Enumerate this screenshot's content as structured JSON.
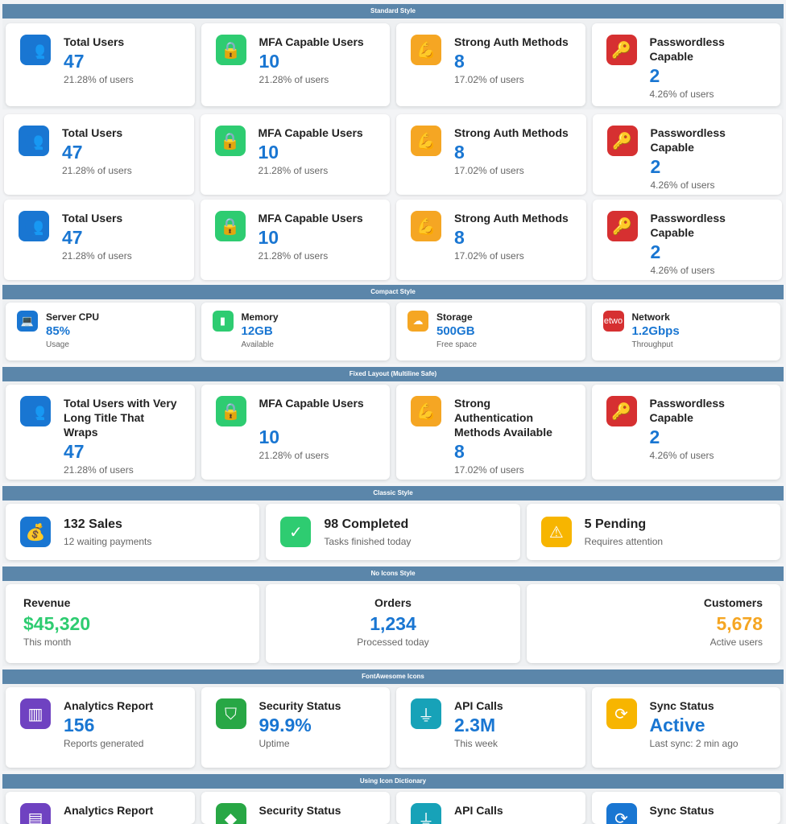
{
  "standard": {
    "title": "Standard Style",
    "rows": [
      [
        {
          "icon": "users-icon",
          "glyph": "👥",
          "title": "Total Users",
          "value": "47",
          "sub": "21.28% of users"
        },
        {
          "icon": "lock-icon",
          "glyph": "🔒",
          "title": "MFA Capable Users",
          "value": "10",
          "sub": "21.28% of users"
        },
        {
          "icon": "strong-arm-icon",
          "glyph": "💪",
          "title": "Strong Auth Methods",
          "value": "8",
          "sub": "17.02% of users"
        },
        {
          "icon": "key-icon",
          "glyph": "🔑",
          "title": "Passwordless Capable",
          "value": "2",
          "sub": "4.26% of users"
        }
      ],
      [
        {
          "icon": "users-icon",
          "glyph": "👥",
          "title": "Total Users",
          "value": "47",
          "sub": "21.28% of users"
        },
        {
          "icon": "lock-icon",
          "glyph": "🔒",
          "title": "MFA Capable Users",
          "value": "10",
          "sub": "21.28% of users"
        },
        {
          "icon": "strong-arm-icon",
          "glyph": "💪",
          "title": "Strong Auth Methods",
          "value": "8",
          "sub": "17.02% of users"
        },
        {
          "icon": "key-icon",
          "glyph": "🔑",
          "title": "Passwordless Capable",
          "value": "2",
          "sub": "4.26% of users"
        }
      ],
      [
        {
          "icon": "users-icon",
          "glyph": "👥",
          "title": "Total Users",
          "value": "47",
          "sub": "21.28% of users"
        },
        {
          "icon": "lock-icon",
          "glyph": "🔒",
          "title": "MFA Capable Users",
          "value": "10",
          "sub": "21.28% of users"
        },
        {
          "icon": "strong-arm-icon",
          "glyph": "💪",
          "title": "Strong Auth Methods",
          "value": "8",
          "sub": "17.02% of users"
        },
        {
          "icon": "key-icon",
          "glyph": "🔑",
          "title": "Passwordless Capable",
          "value": "2",
          "sub": "4.26% of users"
        }
      ]
    ]
  },
  "compact": {
    "title": "Compact Style",
    "cards": [
      {
        "icon": "computer-icon",
        "glyph": "💻",
        "title": "Server CPU",
        "value": "85%",
        "sub": "Usage"
      },
      {
        "icon": "memory-icon",
        "glyph": "▮",
        "title": "Memory",
        "value": "12GB",
        "sub": "Available"
      },
      {
        "icon": "cloud-icon",
        "glyph": "☁",
        "title": "Storage",
        "value": "500GB",
        "sub": "Free space"
      },
      {
        "icon": "network-icon",
        "glyph": "etwo",
        "title": "Network",
        "value": "1.2Gbps",
        "sub": "Throughput"
      }
    ]
  },
  "fixed": {
    "title": "Fixed Layout (Multiline Safe)",
    "cards": [
      {
        "icon": "users-icon",
        "glyph": "👥",
        "title": "Total Users with Very Long Title That Wraps",
        "value": "47",
        "sub": "21.28% of users"
      },
      {
        "icon": "lock-icon",
        "glyph": "🔒",
        "title": "MFA Capable Users",
        "value": "10",
        "sub": "21.28% of users"
      },
      {
        "icon": "strong-arm-icon",
        "glyph": "💪",
        "title": "Strong Authentication Methods Available",
        "value": "8",
        "sub": "17.02% of users"
      },
      {
        "icon": "key-icon",
        "glyph": "🔑",
        "title": "Passwordless Capable",
        "value": "2",
        "sub": "4.26% of users"
      }
    ]
  },
  "classic": {
    "title": "Classic Style",
    "cards": [
      {
        "icon": "money-bag-icon",
        "glyph": "💰",
        "title": "132 Sales",
        "sub": "12 waiting payments"
      },
      {
        "icon": "check-icon",
        "glyph": "✓",
        "title": "98 Completed",
        "sub": "Tasks finished today"
      },
      {
        "icon": "warning-icon",
        "glyph": "⚠",
        "title": "5 Pending",
        "sub": "Requires attention"
      }
    ]
  },
  "noicons": {
    "title": "No Icons Style",
    "cards": [
      {
        "title": "Revenue",
        "value": "$45,320",
        "sub": "This month",
        "align": "left",
        "color": "#2ecc71"
      },
      {
        "title": "Orders",
        "value": "1,234",
        "sub": "Processed today",
        "align": "center",
        "color": "#1976d2"
      },
      {
        "title": "Customers",
        "value": "5,678",
        "sub": "Active users",
        "align": "right",
        "color": "#f5a623"
      }
    ]
  },
  "fontawesome": {
    "title": "FontAwesome Icons",
    "cards": [
      {
        "icon": "chart-bar-icon",
        "glyph": "▥",
        "title": "Analytics Report",
        "value": "156",
        "sub": "Reports generated"
      },
      {
        "icon": "shield-icon",
        "glyph": "⛉",
        "title": "Security Status",
        "value": "99.9%",
        "sub": "Uptime"
      },
      {
        "icon": "plug-icon",
        "glyph": "⏚",
        "title": "API Calls",
        "value": "2.3M",
        "sub": "This week"
      },
      {
        "icon": "sync-icon",
        "glyph": "⟳",
        "title": "Sync Status",
        "value": "Active",
        "sub": "Last sync: 2 min ago"
      }
    ]
  },
  "dictionary": {
    "title": "Using Icon Dictionary",
    "cards": [
      {
        "icon": "analytics-icon",
        "glyph": "▤",
        "title": "Analytics Report"
      },
      {
        "icon": "security-icon",
        "glyph": "◆",
        "title": "Security Status"
      },
      {
        "icon": "api-icon",
        "glyph": "⏚",
        "title": "API Calls"
      },
      {
        "icon": "sync-icon",
        "glyph": "⟳",
        "title": "Sync Status"
      }
    ]
  }
}
